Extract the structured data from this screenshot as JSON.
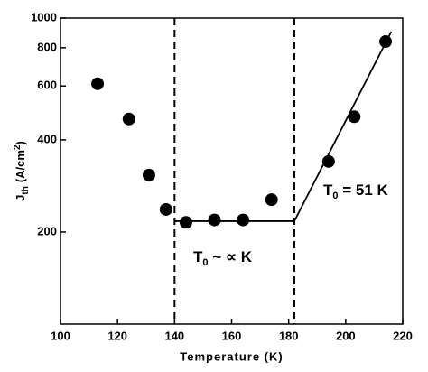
{
  "chart_data": {
    "type": "scatter",
    "x_label": "Temperature (K)",
    "y_label": {
      "base": "J",
      "sub": "th",
      "unit": "(A/cm",
      "sup": "2",
      "close": ")"
    },
    "x": [
      113,
      124,
      131,
      137,
      144,
      154,
      164,
      174,
      194,
      203,
      214
    ],
    "values": [
      610,
      468,
      307,
      237,
      215,
      219,
      219,
      255,
      340,
      476,
      838
    ],
    "color": "#000000",
    "xlim": [
      100,
      220
    ],
    "xticks": [
      100,
      120,
      140,
      160,
      180,
      200,
      220
    ],
    "ylim": [
      100,
      1000
    ],
    "yticks": [
      200,
      400,
      600,
      800,
      1000
    ],
    "log_y": true,
    "vlines": [
      140,
      182
    ],
    "fit_lines": [
      {
        "x": [
          140,
          182
        ],
        "y": [
          217,
          217
        ]
      },
      {
        "x": [
          182,
          216
        ],
        "y": [
          217,
          903
        ]
      }
    ],
    "annotations": [
      {
        "base": "T",
        "sub": "0",
        "rest": " ~ ∝ K"
      },
      {
        "base": "T",
        "sub": "0",
        "rest": " = 51 K"
      }
    ]
  }
}
